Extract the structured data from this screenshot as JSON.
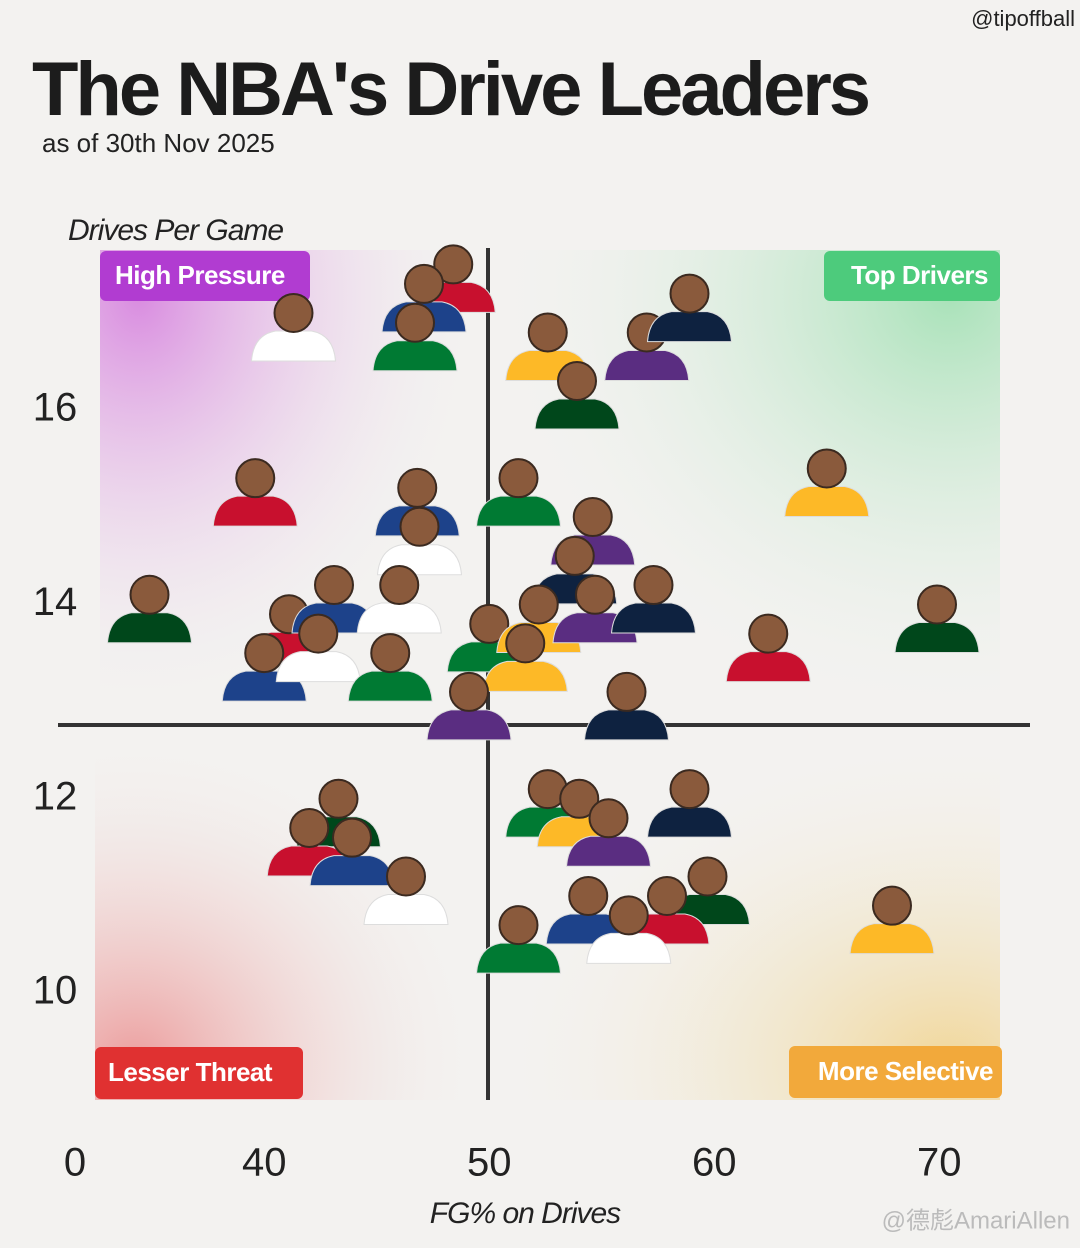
{
  "source": "@tipoffball",
  "watermark": "@德彪AmariAllen",
  "chart_data": {
    "type": "scatter",
    "title": "The NBA's Drive Leaders",
    "subtitle": "as of 30th Nov 2025",
    "y_label": "Drives Per Game",
    "x_label": "FG% on Drives",
    "x_axis_origin_label": "0",
    "quadrants": {
      "top_left": "High Pressure",
      "top_right": "Top Drivers",
      "bottom_left": "Lesser Threat",
      "bottom_right": "More Selective"
    },
    "x": [
      48.4,
      47.1,
      41.3,
      46.7,
      52.6,
      57.0,
      58.9,
      53.9,
      39.6,
      46.8,
      46.9,
      51.3,
      65.0,
      54.6,
      53.8,
      34.9,
      41.1,
      43.1,
      46.0,
      50.0,
      52.2,
      54.7,
      57.3,
      69.9,
      62.4,
      40.0,
      42.4,
      45.6,
      51.6,
      49.1,
      56.1,
      43.3,
      42.0,
      43.9,
      46.3,
      52.6,
      54.0,
      55.3,
      58.9,
      59.7,
      57.9,
      54.4,
      56.2,
      51.3,
      67.9
    ],
    "values": [
      17.5,
      17.3,
      17.0,
      16.9,
      16.8,
      16.8,
      17.2,
      16.3,
      15.3,
      15.2,
      14.8,
      15.3,
      15.4,
      14.9,
      14.5,
      14.1,
      13.9,
      14.2,
      14.2,
      13.8,
      14.0,
      14.1,
      14.2,
      14.0,
      13.7,
      13.5,
      13.7,
      13.5,
      13.6,
      13.1,
      13.1,
      12.0,
      11.7,
      11.6,
      11.2,
      12.1,
      12.0,
      11.8,
      12.1,
      11.2,
      11.0,
      11.0,
      10.8,
      10.7,
      10.9
    ],
    "color": "#8a5a3c",
    "xlim": [
      32.7,
      72.7
    ],
    "ylim": [
      8.9,
      17.7
    ],
    "xticks": [
      40,
      50,
      60,
      70
    ],
    "yticks": [
      10,
      12,
      14,
      16
    ]
  }
}
